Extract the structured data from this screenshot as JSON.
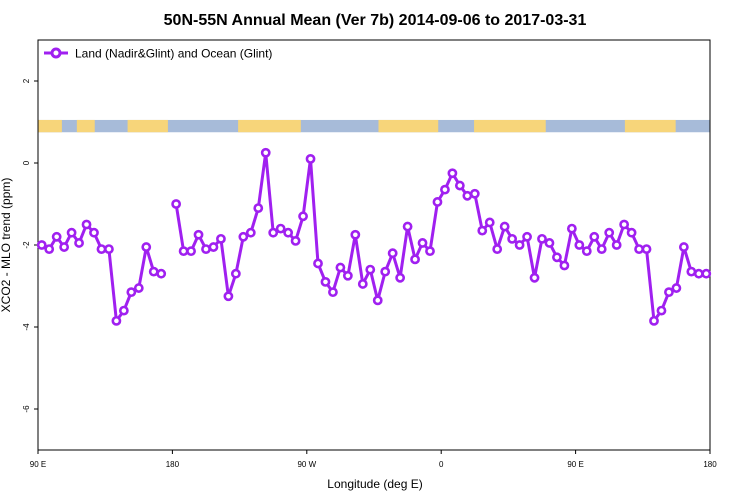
{
  "chart_data": {
    "type": "line",
    "title": "50N-55N Annual Mean (Ver 7b)   2014-09-06 to 2017-03-31",
    "xlabel": "Longitude (deg E)",
    "ylabel": "XCO2 - MLO trend (ppm)",
    "xlim": [
      90,
      540
    ],
    "ylim": [
      -7,
      3
    ],
    "x_ticks": [
      {
        "value": 90,
        "label": "90 E"
      },
      {
        "value": 180,
        "label": "180"
      },
      {
        "value": 270,
        "label": "90 W"
      },
      {
        "value": 360,
        "label": "0"
      },
      {
        "value": 450,
        "label": "90 E"
      },
      {
        "value": 540,
        "label": "180"
      }
    ],
    "y_ticks": [
      {
        "value": 2,
        "label": "2"
      },
      {
        "value": 0,
        "label": "0"
      },
      {
        "value": -2,
        "label": "-2"
      },
      {
        "value": -4,
        "label": "-4"
      },
      {
        "value": -6,
        "label": "-6"
      }
    ],
    "grid": false,
    "legend": {
      "position": "top-left"
    },
    "land_sea_band": {
      "y_range": [
        0.75,
        1.05
      ],
      "land_color": "#f7d57a",
      "ocean_color": "#a7bbd9"
    },
    "series": [
      {
        "name": "Land (Nadir&Glint) and Ocean (Glint)",
        "color": "#a020f0",
        "segments": [
          {
            "x": [
              92.5,
              97.5,
              102.5,
              107.5,
              112.5,
              117.5,
              122.5,
              127.5,
              132.5,
              137.5,
              142.5,
              147.5,
              152.5,
              157.5,
              162.5,
              167.5
            ],
            "y": [
              -2.0,
              -2.1,
              -1.8,
              -2.05,
              -1.7,
              -1.95,
              -1.5,
              -1.7,
              -2.1,
              -2.1,
              -3.85,
              -3.6,
              -3.15,
              -3.05,
              -2.05,
              -2.65
            ]
          },
          {
            "x": [
              167.5,
              172.5
            ],
            "y": [
              -2.65,
              -2.7
            ]
          },
          {
            "x": [
              182.5,
              187.5,
              192.5,
              197.5,
              202.5,
              207.5,
              212.5,
              217.5,
              222.5,
              227.5,
              232.5,
              237.5,
              242.5,
              247.5,
              252.5,
              257.5,
              262.5,
              267.5,
              272.5,
              277.5,
              282.5,
              287.5,
              292.5,
              297.5,
              302.5,
              307.5,
              312.5,
              317.5,
              322.5,
              327.5,
              332.5,
              337.5,
              342.5,
              347.5,
              352.5,
              357.5,
              362.5,
              367.5,
              372.5,
              377.5,
              382.5,
              387.5,
              392.5,
              397.5,
              402.5,
              407.5,
              412.5,
              417.5,
              422.5,
              427.5,
              432.5,
              437.5,
              442.5,
              447.5,
              452.5,
              457.5,
              462.5,
              467.5,
              472.5,
              477.5,
              482.5,
              487.5,
              492.5,
              497.5,
              502.5,
              507.5,
              512.5,
              517.5,
              522.5,
              527.5,
              532.5,
              537.5
            ],
            "y": [
              -1.0,
              -2.15,
              -2.15,
              -1.75,
              -2.1,
              -2.05,
              -1.85,
              -3.25,
              -2.7,
              -1.8,
              -1.7,
              -1.1,
              0.25,
              -1.7,
              -1.6,
              -1.7,
              -1.9,
              -1.3,
              0.1,
              -2.45,
              -2.9,
              -3.15,
              -2.55,
              -2.75,
              -1.75,
              -2.95,
              -2.6,
              -3.35,
              -2.65,
              -2.2,
              -2.8,
              -1.55,
              -2.35,
              -1.95,
              -2.15,
              -0.95,
              -0.65,
              -0.25,
              -0.55,
              -0.8,
              -0.75,
              -1.65,
              -1.45,
              -2.1,
              -1.55,
              -1.85,
              -2.0,
              -1.8,
              -2.8,
              -1.85,
              -1.95,
              -2.3,
              -2.5,
              -1.6,
              -2.0,
              -2.15,
              -1.8,
              -2.1,
              -1.7,
              -2.0,
              -1.5,
              -1.7,
              -2.1,
              -2.1,
              -3.85,
              -3.6,
              -3.15,
              -3.05,
              -2.05,
              -2.65,
              -2.7,
              -2.7
            ]
          }
        ]
      }
    ]
  }
}
